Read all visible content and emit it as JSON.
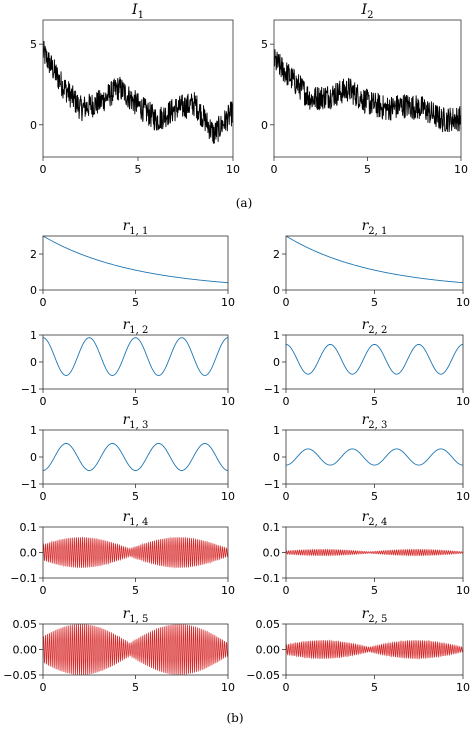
{
  "captions": {
    "top": "(a)",
    "bottom": "(b)"
  },
  "colors": {
    "signal": "#000000",
    "smooth": "#1f77b4",
    "oscillatory": "#d62728"
  },
  "chart_data": [
    {
      "id": "I1",
      "type": "line",
      "title": "I",
      "sub": "1",
      "xlim": [
        0,
        10
      ],
      "ylim": [
        -2,
        6.5
      ],
      "xticks": [
        0,
        5,
        10
      ],
      "yticks": [
        0,
        5
      ],
      "ytick_labels": [
        "0",
        "5"
      ],
      "color": "#000000",
      "series_kind": "noisy",
      "series_points": [
        [
          0,
          4.5
        ],
        [
          1,
          2.5
        ],
        [
          2,
          1.0
        ],
        [
          3,
          1.4
        ],
        [
          4,
          2.3
        ],
        [
          5,
          1.2
        ],
        [
          6,
          0.3
        ],
        [
          7,
          1.0
        ],
        [
          8,
          1.3
        ],
        [
          9,
          -0.6
        ],
        [
          10,
          0.8
        ]
      ]
    },
    {
      "id": "I2",
      "type": "line",
      "title": "I",
      "sub": "2",
      "xlim": [
        0,
        10
      ],
      "ylim": [
        -2,
        6.5
      ],
      "xticks": [
        0,
        5,
        10
      ],
      "yticks": [
        0,
        5
      ],
      "ytick_labels": [
        "0",
        "5"
      ],
      "color": "#000000",
      "series_kind": "noisy",
      "series_points": [
        [
          0,
          4.0
        ],
        [
          1,
          2.8
        ],
        [
          2,
          1.6
        ],
        [
          3,
          1.8
        ],
        [
          4,
          2.2
        ],
        [
          5,
          1.4
        ],
        [
          6,
          1.0
        ],
        [
          7,
          1.2
        ],
        [
          8,
          1.0
        ],
        [
          9,
          0.3
        ],
        [
          10,
          0.4
        ]
      ]
    },
    {
      "id": "r11",
      "type": "line",
      "title": "r",
      "sub": "1, 1",
      "xlim": [
        0,
        10
      ],
      "ylim": [
        0,
        3
      ],
      "xticks": [
        0,
        5,
        10
      ],
      "yticks": [
        0,
        2
      ],
      "ytick_labels": [
        "0",
        "2"
      ],
      "color": "#1f77b4",
      "series_kind": "decay",
      "amplitude": 3.0,
      "decay_rate": 0.2
    },
    {
      "id": "r21",
      "type": "line",
      "title": "r",
      "sub": "2, 1",
      "xlim": [
        0,
        10
      ],
      "ylim": [
        0,
        3
      ],
      "xticks": [
        0,
        5,
        10
      ],
      "yticks": [
        0,
        2
      ],
      "ytick_labels": [
        "0",
        "2"
      ],
      "color": "#1f77b4",
      "series_kind": "decay",
      "amplitude": 3.0,
      "decay_rate": 0.2
    },
    {
      "id": "r12",
      "type": "line",
      "title": "r",
      "sub": "1, 2",
      "xlim": [
        0,
        10
      ],
      "ylim": [
        -1,
        1
      ],
      "xticks": [
        0,
        5,
        10
      ],
      "yticks": [
        -1,
        0,
        1
      ],
      "ytick_labels": [
        "−1",
        "0",
        "1"
      ],
      "color": "#1f77b4",
      "series_kind": "cosine",
      "amplitude": 0.7,
      "offset": 0.2,
      "period": 2.5
    },
    {
      "id": "r22",
      "type": "line",
      "title": "r",
      "sub": "2, 2",
      "xlim": [
        0,
        10
      ],
      "ylim": [
        -1,
        1
      ],
      "xticks": [
        0,
        5,
        10
      ],
      "yticks": [
        -1,
        0,
        1
      ],
      "ytick_labels": [
        "−1",
        "0",
        "1"
      ],
      "color": "#1f77b4",
      "series_kind": "cosine",
      "amplitude": 0.55,
      "offset": 0.1,
      "period": 2.5
    },
    {
      "id": "r13",
      "type": "line",
      "title": "r",
      "sub": "1, 3",
      "xlim": [
        0,
        10
      ],
      "ylim": [
        -1,
        1
      ],
      "xticks": [
        0,
        5,
        10
      ],
      "yticks": [
        -1,
        0,
        1
      ],
      "ytick_labels": [
        "−1",
        "0",
        "1"
      ],
      "color": "#1f77b4",
      "series_kind": "cosine",
      "amplitude": -0.5,
      "offset": 0.0,
      "period": 2.5
    },
    {
      "id": "r23",
      "type": "line",
      "title": "r",
      "sub": "2, 3",
      "xlim": [
        0,
        10
      ],
      "ylim": [
        -1,
        1
      ],
      "xticks": [
        0,
        5,
        10
      ],
      "yticks": [
        -1,
        0,
        1
      ],
      "ytick_labels": [
        "−1",
        "0",
        "1"
      ],
      "color": "#1f77b4",
      "series_kind": "cosine",
      "amplitude": -0.3,
      "offset": 0.0,
      "period": 2.5
    },
    {
      "id": "r14",
      "type": "line",
      "title": "r",
      "sub": "1, 4",
      "xlim": [
        0,
        10
      ],
      "ylim": [
        -0.1,
        0.1
      ],
      "xticks": [
        0,
        5,
        10
      ],
      "yticks": [
        -0.1,
        0.0,
        0.1
      ],
      "ytick_labels": [
        "−0.1",
        "0.0",
        "0.1"
      ],
      "color": "#d62728",
      "series_kind": "beat",
      "amplitude": 0.06,
      "envelope_period": 5.3
    },
    {
      "id": "r24",
      "type": "line",
      "title": "r",
      "sub": "2, 4",
      "xlim": [
        0,
        10
      ],
      "ylim": [
        -0.1,
        0.1
      ],
      "xticks": [
        0,
        5,
        10
      ],
      "yticks": [
        -0.1,
        0.0,
        0.1
      ],
      "ytick_labels": [
        "−0.1",
        "0.0",
        "0.1"
      ],
      "color": "#d62728",
      "series_kind": "beat",
      "amplitude": 0.012,
      "envelope_period": 5.3
    },
    {
      "id": "r15",
      "type": "line",
      "title": "r",
      "sub": "1, 5",
      "xlim": [
        0,
        10
      ],
      "ylim": [
        -0.05,
        0.05
      ],
      "xticks": [
        0,
        5,
        10
      ],
      "yticks": [
        -0.05,
        0.0,
        0.05
      ],
      "ytick_labels": [
        "−0.05",
        "0.00",
        "0.05"
      ],
      "color": "#d62728",
      "series_kind": "beat",
      "amplitude": 0.05,
      "envelope_period": 5.3
    },
    {
      "id": "r25",
      "type": "line",
      "title": "r",
      "sub": "2, 5",
      "xlim": [
        0,
        10
      ],
      "ylim": [
        -0.05,
        0.05
      ],
      "xticks": [
        0,
        5,
        10
      ],
      "yticks": [
        -0.05,
        0.0,
        0.05
      ],
      "ytick_labels": [
        "−0.05",
        "0.00",
        "0.05"
      ],
      "color": "#d62728",
      "series_kind": "beat",
      "amplitude": 0.018,
      "envelope_period": 5.3
    }
  ]
}
